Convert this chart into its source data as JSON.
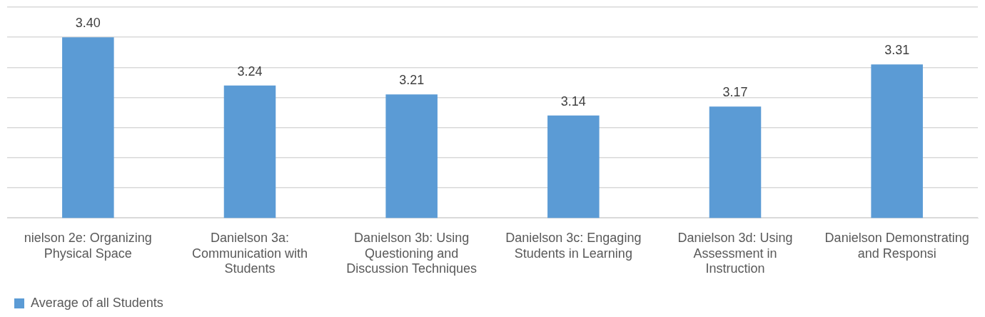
{
  "chart_data": {
    "type": "bar",
    "categories": [
      "nielson 2e: Organizing Physical Space",
      "Danielson 3a: Communication with Students",
      "Danielson 3b: Using Questioning and Discussion Techniques",
      "Danielson 3c: Engaging Students in Learning",
      "Danielson 3d: Using Assessment in Instruction",
      "Danielson Demonstrating and Responsi"
    ],
    "series": [
      {
        "name": "Average of all Students",
        "color": "#5b9bd5",
        "values": [
          3.4,
          3.24,
          3.21,
          3.14,
          3.17,
          3.31
        ],
        "value_labels": [
          "3.40",
          "3.24",
          "3.21",
          "3.14",
          "3.17",
          "3.31"
        ]
      }
    ],
    "ylim": [
      2.8,
      3.5
    ],
    "yticks": [
      {
        "value": 2.8,
        "label": null
      },
      {
        "value": 2.9,
        "label": null
      },
      {
        "value": 3.0,
        "label": null
      },
      {
        "value": 3.1,
        "label": null
      },
      {
        "value": 3.2,
        "label": null
      },
      {
        "value": 3.3,
        "label": null
      },
      {
        "value": 3.4,
        "label": null
      },
      {
        "value": 3.5,
        "label": null
      }
    ],
    "tick_labels": "x",
    "grid": "y",
    "legend": "bottom left"
  }
}
